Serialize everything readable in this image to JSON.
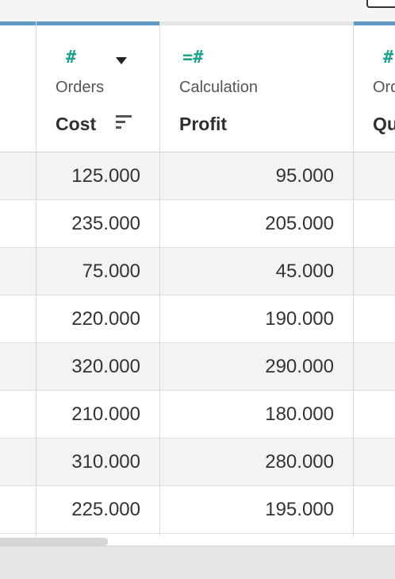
{
  "columns": [
    {
      "type_icon": "#",
      "icon_name": "number-type-icon",
      "source": "Orders",
      "name": "Cost",
      "values": [
        "125.000",
        "235.000",
        "75.000",
        "220.000",
        "320.000",
        "210.000",
        "310.000",
        "225.000"
      ]
    },
    {
      "type_icon": "=#",
      "icon_name": "calculated-number-type-icon",
      "source": "Calculation",
      "name": "Profit",
      "values": [
        "95.000",
        "205.000",
        "45.000",
        "190.000",
        "290.000",
        "180.000",
        "280.000",
        "195.000"
      ]
    },
    {
      "type_icon": "#",
      "icon_name": "number-type-icon",
      "source": "Ord",
      "name": "Qu"
    }
  ],
  "colors": {
    "header_accent": "#5e9bc6",
    "type_icon": "#1fa38b",
    "row_alt": "#f3f3f3"
  }
}
